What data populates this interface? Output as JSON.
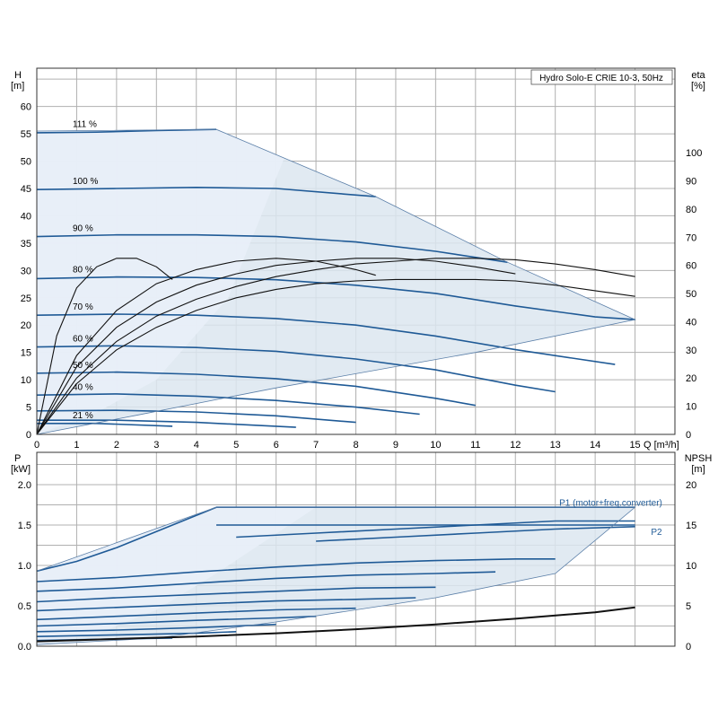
{
  "chart_data": [
    {
      "type": "line",
      "title": "Hydro Solo-E CRIE 10-3, 50Hz",
      "xlabel": "Q [m³/h]",
      "ylabel": "H [m]",
      "ylabel_lines": [
        "H",
        "[m]"
      ],
      "xlabel_short": "Q [m³/h]",
      "y2label_lines": [
        "eta",
        "[%]"
      ],
      "xlim": [
        0,
        16
      ],
      "ylim": [
        0,
        67
      ],
      "y2lim": [
        0,
        130
      ],
      "x_ticks": [
        "0",
        "1",
        "2",
        "3",
        "4",
        "5",
        "6",
        "7",
        "8",
        "9",
        "10",
        "11",
        "12",
        "13",
        "14",
        "15"
      ],
      "y_ticks": [
        "0",
        "5",
        "10",
        "15",
        "20",
        "25",
        "30",
        "35",
        "40",
        "45",
        "50",
        "55",
        "60"
      ],
      "y2_ticks": [
        "0",
        "10",
        "20",
        "30",
        "40",
        "50",
        "60",
        "70",
        "80",
        "90",
        "100"
      ],
      "grid": true,
      "envelope_boundary": [
        [
          0,
          55.5
        ],
        [
          4.5,
          55.8
        ],
        [
          8.5,
          43.5
        ],
        [
          11.8,
          31.5
        ],
        [
          15,
          21
        ],
        [
          11,
          15
        ],
        [
          6,
          8.5
        ],
        [
          2.5,
          3.5
        ],
        [
          0,
          0
        ]
      ],
      "series": [
        {
          "name": "111 %",
          "x": [
            0,
            1.5,
            3,
            4.5
          ],
          "y": [
            55.2,
            55.3,
            55.6,
            55.8
          ]
        },
        {
          "name": "100 %",
          "x": [
            0,
            2,
            4,
            6,
            8.5
          ],
          "y": [
            44.8,
            45.0,
            45.2,
            45.0,
            43.5
          ]
        },
        {
          "name": "90 %",
          "x": [
            0,
            2,
            4,
            6,
            8,
            10,
            11.8
          ],
          "y": [
            36.2,
            36.5,
            36.5,
            36.2,
            35.2,
            33.5,
            31.5
          ]
        },
        {
          "name": "80 %",
          "x": [
            0,
            2,
            4,
            6,
            8,
            10,
            12,
            14,
            15
          ],
          "y": [
            28.5,
            28.8,
            28.7,
            28.3,
            27.3,
            25.8,
            23.5,
            21.5,
            21.0
          ]
        },
        {
          "name": "70 %",
          "x": [
            0,
            2,
            4,
            6,
            8,
            10,
            12,
            14.5
          ],
          "y": [
            21.8,
            22.0,
            21.8,
            21.2,
            20.0,
            18.0,
            15.5,
            12.8
          ]
        },
        {
          "name": "60 %",
          "x": [
            0,
            2,
            4,
            6,
            8,
            10,
            12,
            13
          ],
          "y": [
            16.0,
            16.2,
            15.9,
            15.2,
            13.8,
            11.8,
            9.0,
            7.8
          ]
        },
        {
          "name": "50 %",
          "x": [
            0,
            2,
            4,
            6,
            8,
            10,
            11
          ],
          "y": [
            11.2,
            11.4,
            11.0,
            10.2,
            8.8,
            6.6,
            5.3
          ]
        },
        {
          "name": "40 %",
          "x": [
            0,
            2,
            4,
            6,
            8,
            9.6
          ],
          "y": [
            7.2,
            7.4,
            7.0,
            6.2,
            5.0,
            3.7
          ]
        },
        {
          "name": "",
          "x": [
            0,
            2,
            4,
            6,
            8
          ],
          "y": [
            4.3,
            4.4,
            4.1,
            3.4,
            2.2
          ]
        },
        {
          "name": "",
          "x": [
            0,
            2,
            4,
            6.5
          ],
          "y": [
            2.6,
            2.6,
            2.2,
            1.3
          ]
        },
        {
          "name": "21 %",
          "x": [
            0,
            1.5,
            3.4
          ],
          "y": [
            2.0,
            2.0,
            1.5
          ]
        }
      ],
      "eta_curves": [
        {
          "x": [
            0,
            0.5,
            1.0,
            1.5,
            2.0,
            2.5,
            3.0,
            3.4
          ],
          "y": [
            0,
            35,
            52,
            59.5,
            62.5,
            62.5,
            59.5,
            55
          ]
        },
        {
          "x": [
            0,
            1,
            2,
            3,
            4,
            5,
            6,
            7,
            8,
            8.5
          ],
          "y": [
            0,
            28,
            44,
            53.5,
            58.5,
            61.5,
            62.5,
            61.5,
            58.5,
            56.5
          ]
        },
        {
          "x": [
            0,
            1,
            2,
            3,
            4,
            5,
            6,
            7,
            8,
            9,
            10,
            11,
            12
          ],
          "y": [
            0,
            24,
            38,
            47,
            53,
            57,
            60,
            61.5,
            62.5,
            62.5,
            61.5,
            59.5,
            57
          ]
        },
        {
          "x": [
            0,
            1,
            2,
            3,
            4,
            5,
            6,
            7,
            8,
            9,
            10,
            11,
            12,
            13,
            14,
            15
          ],
          "y": [
            0,
            20,
            33,
            42,
            48,
            52.5,
            56,
            58.5,
            60.5,
            61.5,
            62.5,
            62.5,
            62,
            60.5,
            58.5,
            56
          ]
        },
        {
          "x": [
            0,
            1,
            2,
            3,
            4,
            5,
            6,
            7,
            8,
            9,
            10,
            11,
            12,
            13,
            14,
            15
          ],
          "y": [
            0,
            18,
            30,
            38,
            44,
            48.5,
            51.5,
            53.5,
            54.5,
            55,
            55,
            55,
            54.5,
            53,
            51,
            49
          ]
        }
      ]
    },
    {
      "type": "line",
      "xlabel": "",
      "ylabel": "P [kW]",
      "ylabel_lines": [
        "P",
        "[kW]"
      ],
      "y2label_lines": [
        "NPSH",
        "[m]"
      ],
      "xlim": [
        0,
        16
      ],
      "ylim": [
        0,
        2.4
      ],
      "y2lim": [
        0,
        24
      ],
      "y_ticks": [
        "0.0",
        "0.5",
        "1.0",
        "1.5",
        "2.0"
      ],
      "y2_ticks": [
        "0",
        "5",
        "10",
        "15",
        "20"
      ],
      "grid": true,
      "envelope_boundary": [
        [
          0,
          0.93
        ],
        [
          4.5,
          1.72
        ],
        [
          15,
          1.72
        ],
        [
          13,
          0.9
        ],
        [
          10,
          0.6
        ],
        [
          6,
          0.3
        ],
        [
          3,
          0.1
        ],
        [
          0,
          0.02
        ]
      ],
      "annotations": [
        {
          "text": "P1 (motor+freq.converter)",
          "x": 13.1,
          "y": 1.74
        },
        {
          "text": "P2",
          "x": 15.4,
          "y": 1.38
        }
      ],
      "series": [
        {
          "name": "P1 (motor+freq.converter)",
          "x": [
            4.5,
            7,
            10,
            13,
            15
          ],
          "y": [
            1.72,
            1.72,
            1.72,
            1.72,
            1.72
          ]
        },
        {
          "name": "",
          "x": [
            0,
            1,
            2,
            3,
            4.5
          ],
          "y": [
            0.93,
            1.05,
            1.22,
            1.42,
            1.72
          ]
        },
        {
          "name": "",
          "x": [
            4.5,
            7,
            10,
            13,
            15
          ],
          "y": [
            1.5,
            1.5,
            1.5,
            1.5,
            1.5
          ]
        },
        {
          "name": "",
          "x": [
            5,
            7,
            9,
            11,
            13,
            15
          ],
          "y": [
            1.35,
            1.4,
            1.45,
            1.5,
            1.55,
            1.55
          ]
        },
        {
          "name": "P2",
          "x": [
            7,
            9,
            11,
            13,
            15
          ],
          "y": [
            1.3,
            1.35,
            1.4,
            1.45,
            1.48
          ]
        },
        {
          "name": "",
          "x": [
            0,
            2,
            4,
            6,
            8,
            10,
            12,
            13
          ],
          "y": [
            0.8,
            0.85,
            0.92,
            0.98,
            1.03,
            1.06,
            1.08,
            1.08
          ]
        },
        {
          "name": "",
          "x": [
            0,
            2,
            4,
            6,
            8,
            10,
            11.5
          ],
          "y": [
            0.68,
            0.72,
            0.78,
            0.84,
            0.88,
            0.9,
            0.92
          ]
        },
        {
          "name": "",
          "x": [
            0,
            2,
            4,
            6,
            8,
            10
          ],
          "y": [
            0.55,
            0.6,
            0.64,
            0.68,
            0.72,
            0.73
          ]
        },
        {
          "name": "",
          "x": [
            0,
            2,
            4,
            6,
            8,
            9.5
          ],
          "y": [
            0.44,
            0.48,
            0.52,
            0.56,
            0.58,
            0.6
          ]
        },
        {
          "name": "",
          "x": [
            0,
            2,
            4,
            6,
            8
          ],
          "y": [
            0.33,
            0.37,
            0.41,
            0.45,
            0.47
          ]
        },
        {
          "name": "",
          "x": [
            0,
            2,
            4,
            6,
            7
          ],
          "y": [
            0.25,
            0.28,
            0.32,
            0.35,
            0.37
          ]
        },
        {
          "name": "",
          "x": [
            0,
            2,
            4,
            6
          ],
          "y": [
            0.18,
            0.2,
            0.23,
            0.27
          ]
        },
        {
          "name": "",
          "x": [
            0,
            2,
            4,
            5
          ],
          "y": [
            0.12,
            0.14,
            0.16,
            0.18
          ]
        },
        {
          "name": "",
          "x": [
            0,
            1,
            2,
            3.4
          ],
          "y": [
            0.07,
            0.08,
            0.09,
            0.1
          ]
        }
      ],
      "npsh_curve": {
        "x": [
          0,
          2,
          4,
          6,
          8,
          10,
          12,
          14,
          15
        ],
        "y": [
          0.6,
          0.9,
          1.2,
          1.6,
          2.1,
          2.7,
          3.4,
          4.2,
          4.8
        ]
      }
    }
  ]
}
